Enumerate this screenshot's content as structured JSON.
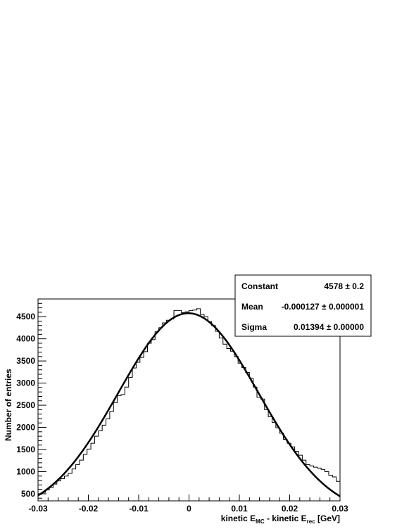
{
  "chart_data": {
    "type": "histogram-with-fit",
    "xlabel": {
      "parts": [
        "kinetic E",
        "MC",
        " - kinetic E",
        "rec",
        " [GeV]"
      ]
    },
    "ylabel": "Number of entries",
    "xlim": [
      -0.03,
      0.03
    ],
    "ylim": [
      340,
      4900
    ],
    "x_ticks": [
      -0.03,
      -0.02,
      -0.01,
      0,
      0.01,
      0.02,
      0.03
    ],
    "x_tick_labels": [
      "-0.03",
      "-0.02",
      "-0.01",
      "0",
      "0.01",
      "0.02",
      "0.03"
    ],
    "y_ticks": [
      500,
      1000,
      1500,
      2000,
      2500,
      3000,
      3500,
      4000,
      4500
    ],
    "y_tick_labels": [
      "500",
      "1000",
      "1500",
      "2000",
      "2500",
      "3000",
      "3500",
      "4000",
      "4500"
    ],
    "histogram": {
      "bin_start": -0.03,
      "bin_width": 0.00075,
      "counts": [
        490,
        530,
        590,
        640,
        720,
        790,
        840,
        900,
        960,
        1060,
        1160,
        1260,
        1390,
        1510,
        1640,
        1800,
        1920,
        2050,
        2190,
        2360,
        2560,
        2720,
        2740,
        2910,
        3130,
        3340,
        3470,
        3580,
        3710,
        3900,
        3980,
        4160,
        4250,
        4360,
        4420,
        4450,
        4640,
        4640,
        4590,
        4610,
        4640,
        4650,
        4680,
        4550,
        4500,
        4390,
        4300,
        4170,
        4020,
        3880,
        3780,
        3720,
        3600,
        3450,
        3350,
        3240,
        3110,
        2910,
        2680,
        2640,
        2400,
        2240,
        2110,
        1990,
        1870,
        1730,
        1640,
        1560,
        1460,
        1370,
        1260,
        1160,
        1130,
        1100,
        1080,
        1050,
        1000,
        920,
        880,
        780
      ]
    },
    "fit": {
      "function": "gaus",
      "constant": 4578,
      "mean": -0.000127,
      "sigma": 0.01394
    },
    "stats_box": [
      {
        "label": "Constant",
        "value": "4578 ± 0.2"
      },
      {
        "label": "Mean",
        "value": "-0.000127 ± 0.000001"
      },
      {
        "label": "Sigma",
        "value": "0.01394 ± 0.00000"
      }
    ]
  }
}
